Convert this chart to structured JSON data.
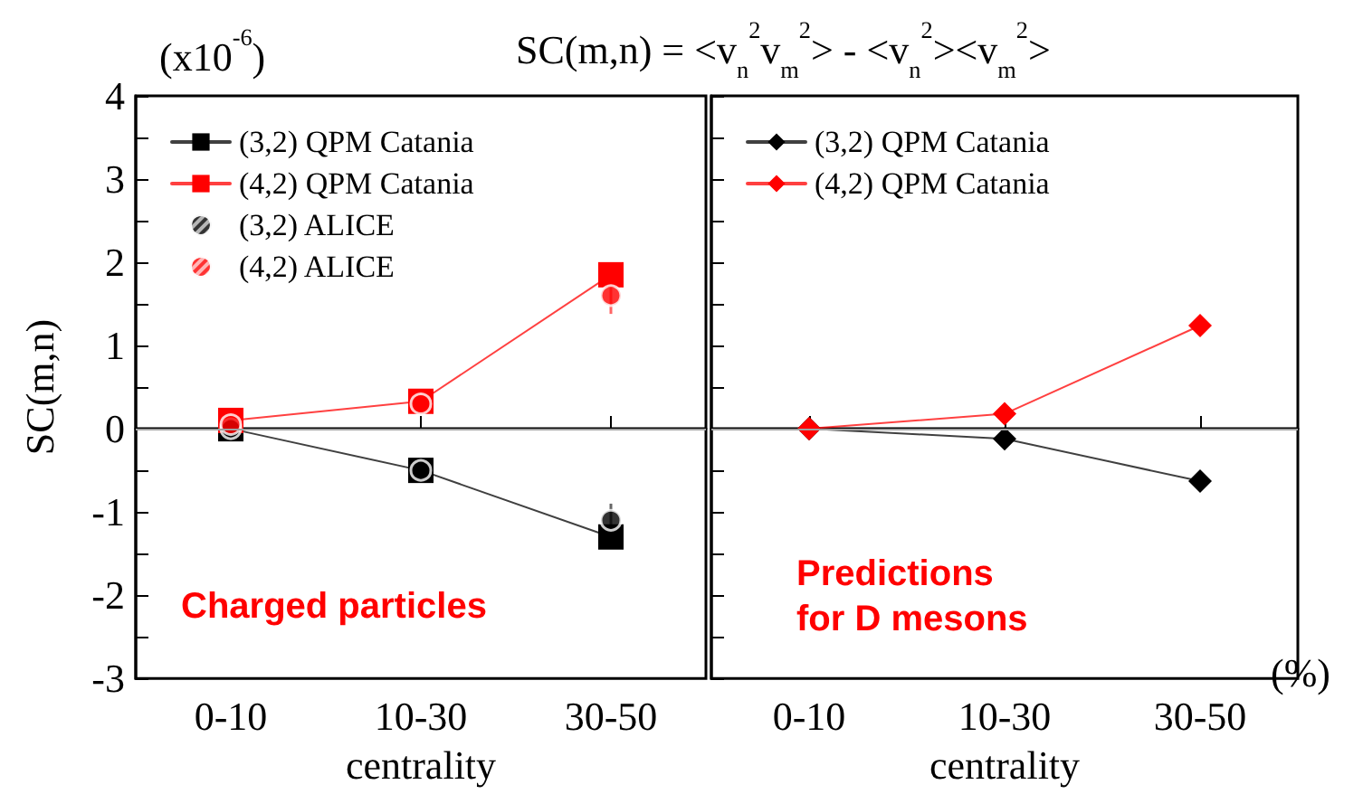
{
  "chart_data": [
    {
      "type": "line",
      "ylabel": "SC(m,n)",
      "xlabel": "centrality",
      "annotations": [
        "(x10$^{-6}$)",
        "Charged particles"
      ],
      "categories": [
        "0-10",
        "10-30",
        "30-50"
      ],
      "ylim": [
        -3,
        4
      ],
      "yticks": [
        -3,
        {
          "value": -2.5,
          "label": null
        },
        -2,
        {
          "value": -1.5,
          "label": null
        },
        -1,
        {
          "value": -0.5,
          "label": null
        },
        0,
        {
          "value": 0.5,
          "label": null
        },
        1,
        {
          "value": 1.5,
          "label": null
        },
        2,
        {
          "value": 2.5,
          "label": null
        },
        3,
        {
          "value": 3.5,
          "label": null
        },
        4
      ],
      "grid": false,
      "legend": "top left",
      "ref_lines": [
        {
          "axis": "y",
          "value": 0,
          "color": "#a0a0a0"
        }
      ],
      "series": [
        {
          "name": "(3,2) QPM Catania",
          "marker": "square",
          "color": "#000000",
          "values": [
            0,
            -0.5,
            -1.3
          ]
        },
        {
          "name": "(4,2) QPM Catania",
          "marker": "square",
          "color": "#ff0000",
          "values": [
            0.1,
            0.33,
            1.85
          ]
        },
        {
          "name": "(3,2) ALICE",
          "type": "scatter",
          "marker": "circle",
          "color": "#000000",
          "values": [
            0,
            -0.5,
            -1.1
          ],
          "errors": [
            null,
            null,
            0.2
          ]
        },
        {
          "name": "(4,2) ALICE",
          "type": "scatter",
          "marker": "circle",
          "color": "#ff0000",
          "values": [
            0.05,
            0.3,
            1.6
          ],
          "errors": [
            null,
            null,
            0.22
          ]
        }
      ]
    },
    {
      "type": "line",
      "title": "SC(m,n) = <v$_{n}$$^{2}$v$_{m}$$^{2}$> - <v$_{n}$$^{2}$><v$_{m}$$^{2}$>",
      "xlabel": "centrality",
      "annotations": [
        "Predictions\nfor D mesons",
        "(%)"
      ],
      "tick_labels": "x",
      "categories": [
        "0-10",
        "10-30",
        "30-50"
      ],
      "ylim": [
        -3,
        4
      ],
      "yticks": [
        -3,
        {
          "value": -2.5,
          "label": null
        },
        -2,
        {
          "value": -1.5,
          "label": null
        },
        -1,
        {
          "value": -0.5,
          "label": null
        },
        0,
        {
          "value": 0.5,
          "label": null
        },
        1,
        {
          "value": 1.5,
          "label": null
        },
        2,
        {
          "value": 2.5,
          "label": null
        },
        3,
        {
          "value": 3.5,
          "label": null
        },
        4
      ],
      "grid": false,
      "legend": "top left",
      "ref_lines": [
        {
          "axis": "y",
          "value": 0,
          "color": "#a0a0a0"
        }
      ],
      "series": [
        {
          "name": "(3,2) QPM Catania",
          "marker": "diamond",
          "color": "#000000",
          "values": [
            0,
            -0.12,
            -0.63
          ]
        },
        {
          "name": "(4,2) QPM Catania",
          "marker": "diamond",
          "color": "#ff0000",
          "values": [
            0,
            0.18,
            1.24
          ]
        }
      ]
    }
  ]
}
